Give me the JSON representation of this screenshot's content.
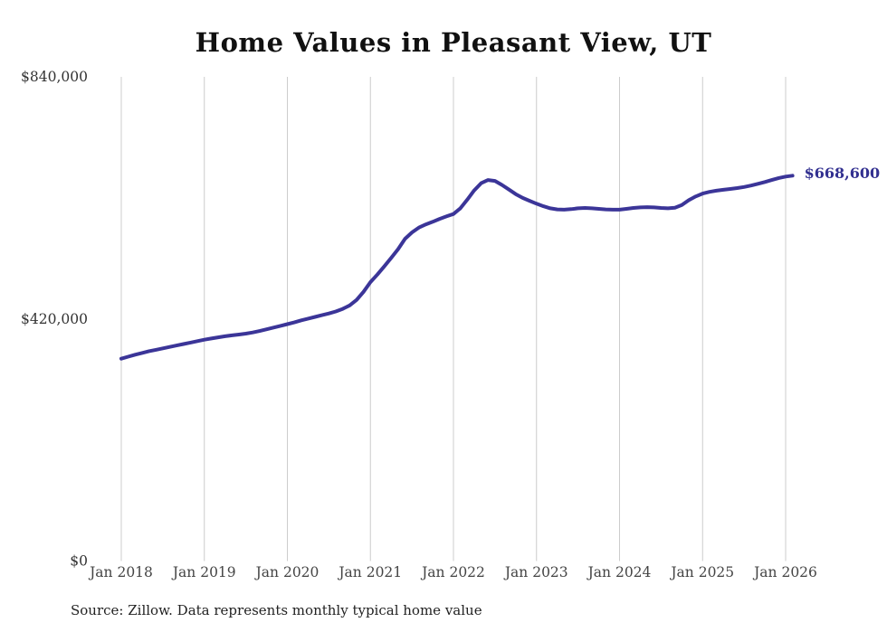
{
  "chart_data": {
    "type": "line",
    "title": "Home Values in Pleasant View, UT",
    "source_note": "Source: Zillow. Data represents monthly typical home value",
    "x_ticks": [
      "Jan 2018",
      "Jan 2019",
      "Jan 2020",
      "Jan 2021",
      "Jan 2022",
      "Jan 2023",
      "Jan 2024",
      "Jan 2025",
      "Jan 2026"
    ],
    "y_ticks": [
      {
        "value": 0,
        "label": "$0"
      },
      {
        "value": 420000,
        "label": "$420,000"
      },
      {
        "value": 840000,
        "label": "$840,000"
      }
    ],
    "ylim": [
      0,
      840000
    ],
    "grid": "vertical-only",
    "legend": "none",
    "end_label": "$668,600",
    "series": [
      {
        "name": "Typical home value",
        "cadence": "monthly",
        "start": "Jan 2018",
        "end": "Feb 2026",
        "values": [
          351000,
          354500,
          358000,
          361000,
          364000,
          366500,
          369000,
          371500,
          374000,
          376500,
          379000,
          381500,
          384000,
          386000,
          388000,
          390000,
          391500,
          393000,
          394500,
          396500,
          399000,
          402000,
          405000,
          408000,
          411000,
          414000,
          417500,
          420500,
          423500,
          426500,
          429500,
          433000,
          437500,
          443500,
          453000,
          467000,
          484000,
          497000,
          511000,
          526000,
          541000,
          559000,
          570000,
          578500,
          584000,
          588500,
          593500,
          598000,
          602000,
          612000,
          627000,
          643000,
          655500,
          661000,
          659500,
          652500,
          644500,
          636500,
          630000,
          625000,
          620000,
          615500,
          612000,
          610000,
          609500,
          610500,
          612000,
          612500,
          612000,
          611000,
          610000,
          609500,
          609500,
          611000,
          612500,
          613500,
          614000,
          613500,
          612500,
          612000,
          613000,
          617500,
          626000,
          632500,
          637500,
          640500,
          642500,
          644000,
          645500,
          647000,
          649000,
          651500,
          654500,
          657500,
          661000,
          664500,
          667000,
          668600
        ]
      }
    ],
    "colors": {
      "line": "#3b3598",
      "end_label": "#323090",
      "grid": "#cccccc",
      "x_tick_label": "#444444",
      "y_tick_label": "#333333",
      "title": "#111111",
      "source": "#222222",
      "background": "#ffffff"
    }
  }
}
